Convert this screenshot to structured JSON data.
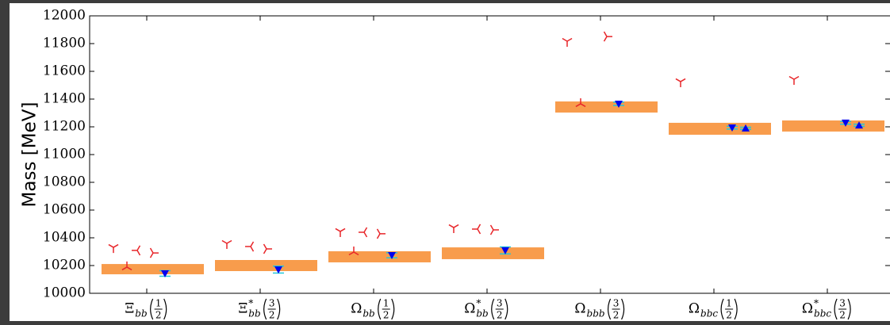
{
  "chart_data": {
    "type": "scatter",
    "ylabel": "Mass [MeV]",
    "categories": [
      {
        "symbol": "Ξ",
        "sub": "bb",
        "num": "1",
        "den": "2"
      },
      {
        "symbol": "Ξ",
        "sub": "bb",
        "sup": "*",
        "num": "3",
        "den": "2"
      },
      {
        "symbol": "Ω",
        "sub": "bb",
        "num": "1",
        "den": "2"
      },
      {
        "symbol": "Ω",
        "sub": "bb",
        "sup": "*",
        "num": "3",
        "den": "2"
      },
      {
        "symbol": "Ω",
        "sub": "bbb",
        "num": "3",
        "den": "2"
      },
      {
        "symbol": "Ω",
        "sub": "bbc",
        "num": "1",
        "den": "2"
      },
      {
        "symbol": "Ω",
        "sub": "bbc",
        "sup": "*",
        "num": "3",
        "den": "2"
      }
    ],
    "bands": {
      "color": "#f89c4c",
      "low": [
        10137,
        10160,
        10223,
        10246,
        11303,
        11143,
        11166
      ],
      "high": [
        10211,
        10240,
        10303,
        10331,
        11383,
        11229,
        11246
      ]
    },
    "series": [
      {
        "color": "#e8262a",
        "marker": "tri_down",
        "values": [
          10331,
          10360,
          10446,
          10474,
          11817,
          11526,
          11543
        ]
      },
      {
        "color": "#e8262a",
        "marker": "tri_left",
        "values": [
          10309,
          10337,
          10440,
          10463,
          null,
          null,
          null
        ]
      },
      {
        "color": "#e8262a",
        "marker": "tri_right",
        "values": [
          10291,
          10320,
          10429,
          10457,
          11851,
          null,
          null
        ]
      },
      {
        "color": "#e8262a",
        "marker": "tri_up",
        "values": [
          10189,
          null,
          10297,
          null,
          11366,
          null,
          null
        ]
      },
      {
        "color": "#0000ee",
        "marker": "v",
        "error_color": "#22c8d8",
        "values": [
          10143,
          10171,
          10274,
          10309,
          11366,
          11194,
          11229
        ],
        "errors": [
          20,
          25,
          18,
          25,
          12,
          10,
          10
        ]
      },
      {
        "color": "#0000ee",
        "marker": "^",
        "error_color": "#22c8d8",
        "values": [
          null,
          null,
          null,
          null,
          null,
          11189,
          11211
        ],
        "errors": [
          null,
          null,
          null,
          null,
          null,
          8,
          8
        ]
      }
    ],
    "ylim": [
      10000,
      12000
    ],
    "yticks": [
      10000,
      10200,
      10400,
      10600,
      10800,
      11000,
      11200,
      11400,
      11600,
      11800,
      12000
    ]
  }
}
